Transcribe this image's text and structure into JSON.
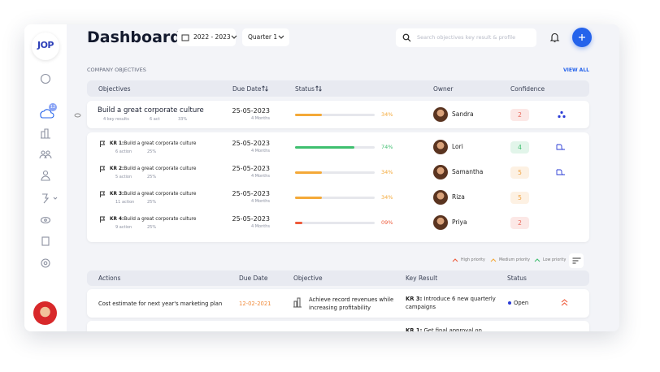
{
  "sidebar": {
    "logo": "JOP",
    "badge": "12"
  },
  "header": {
    "title": "Dashboard",
    "year": "2022 - 2023",
    "quarter": "Quarter 1",
    "search_placeholder": "Search objectives key result & profile"
  },
  "objectives": {
    "heading": "COMPANY OBJECTIVES",
    "view_all": "VIEW ALL",
    "columns": [
      "Objectives",
      "Due Date",
      "Status",
      "Owner",
      "Confidence"
    ],
    "main": {
      "title": "Build a great corporate culture",
      "key_results": "4 key results",
      "actions": "6 act",
      "progress_text": "33%",
      "due_date": "25-05-2023",
      "duration": "4 Months",
      "status": {
        "value": 34,
        "label": "34%"
      },
      "status_color": "#f4a938",
      "owner": "Sandra",
      "confidence": "2",
      "confidence_color": "#e8675a"
    },
    "key_results": [
      {
        "prefix": "KR 1:",
        "title": "Build a great corporate culture",
        "actions": "6 action",
        "progress_text": "25%",
        "due_date": "25-05-2023",
        "duration": "4 Months",
        "status": {
          "value": 74,
          "label": "74%"
        },
        "status_color": "#3fbf6f",
        "owner": "Lori",
        "confidence": "4",
        "confidence_color": "#3fbf6f"
      },
      {
        "prefix": "KR 2:",
        "title": "Build a great corporate culture",
        "actions": "5 action",
        "progress_text": "25%",
        "due_date": "25-05-2023",
        "duration": "4 Months",
        "status": {
          "value": 34,
          "label": "34%"
        },
        "status_color": "#f4a938",
        "owner": "Samantha",
        "confidence": "5",
        "confidence_color": "#f0a240"
      },
      {
        "prefix": "KR 3:",
        "title": "Build a great corporate culture",
        "actions": "11 action",
        "progress_text": "25%",
        "due_date": "25-05-2023",
        "duration": "4 Months",
        "status": {
          "value": 34,
          "label": "34%"
        },
        "status_color": "#f4a938",
        "owner": "Riza",
        "confidence": "5",
        "confidence_color": "#f0a240"
      },
      {
        "prefix": "KR 4:",
        "title": "Build a great corporate culture",
        "actions": "9 action",
        "progress_text": "25%",
        "due_date": "25-05-2023",
        "duration": "4 Months",
        "status": {
          "value": 9,
          "label": "09%"
        },
        "status_color": "#ee5a3a",
        "owner": "Priya",
        "confidence": "2",
        "confidence_color": "#e8675a"
      }
    ]
  },
  "legend": [
    "High priority",
    "Medium priority",
    "Low priority"
  ],
  "actions": {
    "columns": [
      "Actions",
      "Due Date",
      "Objective",
      "Key Result",
      "Status"
    ],
    "rows": [
      {
        "action": "Cost estimate for next year's marketing plan",
        "due_date": "12-02-2021",
        "objective": "Achieve record revenues while increasing profitability",
        "kr_prefix": "KR 3:",
        "kr_text": "Introduce 6 new quarterly campaigns",
        "status": "Open"
      },
      {
        "kr_prefix": "KR 1:",
        "kr_text": "Get final approval on"
      }
    ]
  }
}
